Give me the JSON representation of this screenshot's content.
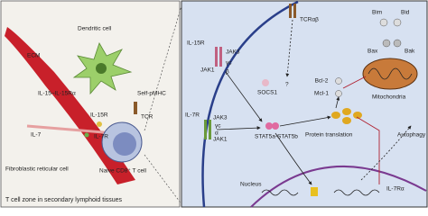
{
  "left_panel": {
    "labels": [
      "ECM",
      "Dendritic cell",
      "IL-15–IL-15Rα",
      "IL-15R",
      "Self-pMHC",
      "TCR",
      "IL-7",
      "IL-7R",
      "Naive CD8⁺ T cell",
      "Fibroblastic reticular cell"
    ],
    "caption": "T cell zone in secondary lymphoid tissues"
  },
  "right_panel": {
    "labels": [
      "IL-15R",
      "JAK3",
      "JAK1",
      "γc",
      "β",
      "TCRαβ",
      "?",
      "SOCS1",
      "IL-7R",
      "JAK3",
      "JAK1",
      "γc",
      "α",
      "STAT5a-STAT5b",
      "Bcl-2",
      "Mcl-1",
      "Bim",
      "Bid",
      "Bax",
      "Bak",
      "Mitochondria",
      "Protein translation",
      "Autophagy",
      "Nucleus",
      "IL-7Rα"
    ]
  }
}
